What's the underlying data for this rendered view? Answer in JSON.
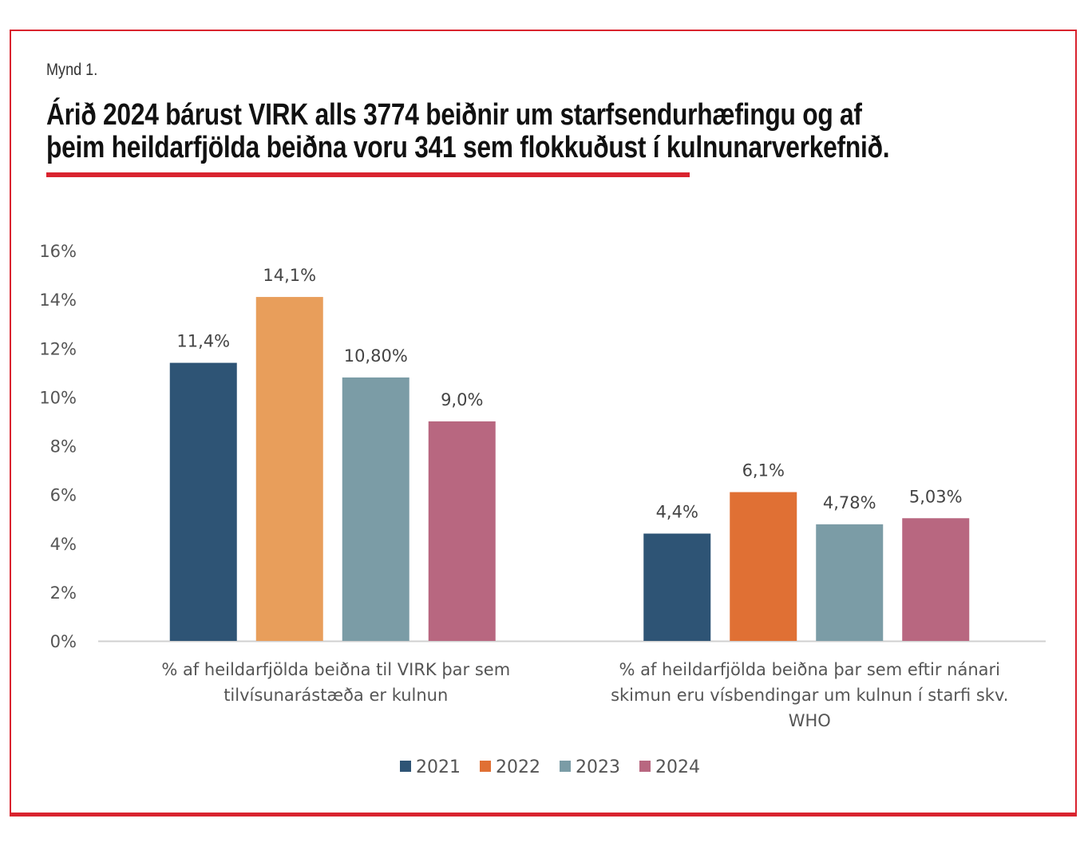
{
  "figure": {
    "label": "Mynd 1.",
    "title_lines": [
      "Árið 2024 bárust VIRK alls 3774 beiðnir um starfsendurhæfingu og af",
      "þeim heildarfjölda beiðna voru 341 sem flokkuðust í kulnunarverkefnið."
    ]
  },
  "chart_data": {
    "type": "bar",
    "title": "Árið 2024 bárust VIRK alls 3774 beiðnir um starfsendurhæfingu og af þeim heildarfjölda beiðna voru 341 sem flokkuðust í kulnunarverkefnið.",
    "categories": [
      [
        "% af heildarfjölda beiðna til VIRK þar sem",
        "tilvísunarástæða er kulnun"
      ],
      [
        "% af heildarfjölda beiðna þar sem eftir nánari",
        "skimun eru vísbendingar um kulnun í starfi skv.",
        "WHO"
      ]
    ],
    "series": [
      {
        "name": "2021",
        "values": [
          11.4,
          4.4
        ],
        "labels": [
          "11,4%",
          "4,4%"
        ],
        "colors": [
          "#2e5475",
          "#2e5475"
        ]
      },
      {
        "name": "2022",
        "values": [
          14.1,
          6.1
        ],
        "labels": [
          "14,1%",
          "6,1%"
        ],
        "colors": [
          "#e89e5b",
          "#e07034"
        ]
      },
      {
        "name": "2023",
        "values": [
          10.8,
          4.78
        ],
        "labels": [
          "10,80%",
          "4,78%"
        ],
        "colors": [
          "#7b9ca6",
          "#7b9ca6"
        ]
      },
      {
        "name": "2024",
        "values": [
          9.0,
          5.03
        ],
        "labels": [
          "9,0%",
          "5,03%"
        ],
        "colors": [
          "#b86780",
          "#b86780"
        ]
      }
    ],
    "legend_colors": [
      "#2e5475",
      "#e07034",
      "#7b9ca6",
      "#b86780"
    ],
    "y_ticks": [
      0,
      2,
      4,
      6,
      8,
      10,
      12,
      14,
      16
    ],
    "y_tick_labels": [
      "0%",
      "2%",
      "4%",
      "6%",
      "8%",
      "10%",
      "12%",
      "14%",
      "16%"
    ],
    "ylim": [
      0,
      16
    ],
    "xlabel": "",
    "ylabel": "",
    "legend_position": "bottom",
    "grid": false
  },
  "colors": {
    "accent": "#d9232e",
    "axis": "#d0d0d0"
  }
}
